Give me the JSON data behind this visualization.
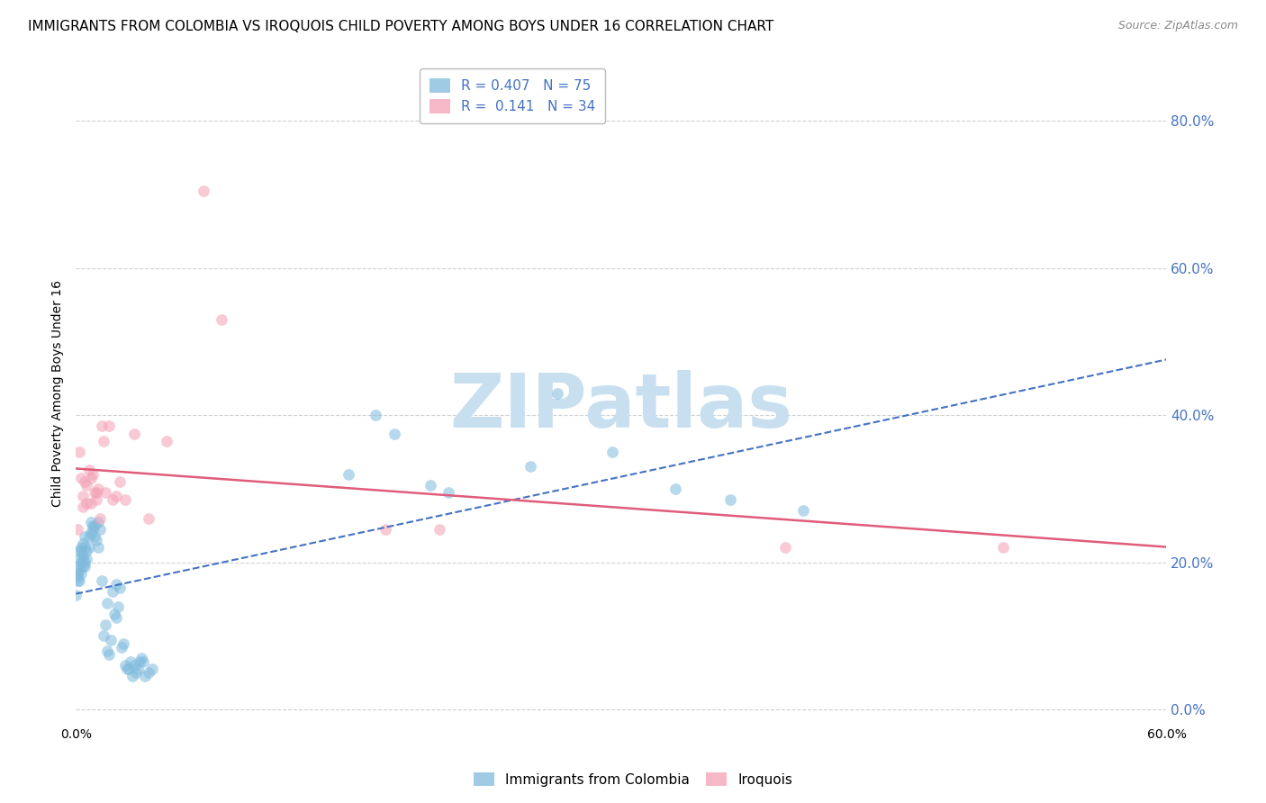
{
  "title": "IMMIGRANTS FROM COLOMBIA VS IROQUOIS CHILD POVERTY AMONG BOYS UNDER 16 CORRELATION CHART",
  "source": "Source: ZipAtlas.com",
  "ylabel": "Child Poverty Among Boys Under 16",
  "ytick_labels": [
    "0.0%",
    "20.0%",
    "40.0%",
    "60.0%",
    "80.0%"
  ],
  "ytick_values": [
    0.0,
    0.2,
    0.4,
    0.6,
    0.8
  ],
  "xtick_labels": [
    "0.0%",
    "60.0%"
  ],
  "xtick_values": [
    0.0,
    0.6
  ],
  "xrange": [
    0.0,
    0.6
  ],
  "yrange": [
    -0.02,
    0.88
  ],
  "R_blue": 0.407,
  "N_blue": 75,
  "R_pink": 0.141,
  "N_pink": 34,
  "legend_label_blue": "Immigrants from Colombia",
  "legend_label_pink": "Iroquois",
  "blue_color": "#7fbadd",
  "pink_color": "#f4a0b5",
  "line_blue_color": "#4472c4",
  "line_pink_color": "#e05c7a",
  "blue_scatter": [
    [
      0.0,
      0.155
    ],
    [
      0.001,
      0.185
    ],
    [
      0.001,
      0.175
    ],
    [
      0.001,
      0.195
    ],
    [
      0.001,
      0.18
    ],
    [
      0.002,
      0.205
    ],
    [
      0.002,
      0.19
    ],
    [
      0.002,
      0.215
    ],
    [
      0.002,
      0.175
    ],
    [
      0.003,
      0.2
    ],
    [
      0.003,
      0.215
    ],
    [
      0.003,
      0.22
    ],
    [
      0.003,
      0.185
    ],
    [
      0.004,
      0.21
    ],
    [
      0.004,
      0.225
    ],
    [
      0.004,
      0.195
    ],
    [
      0.004,
      0.205
    ],
    [
      0.005,
      0.22
    ],
    [
      0.005,
      0.2
    ],
    [
      0.005,
      0.235
    ],
    [
      0.005,
      0.195
    ],
    [
      0.006,
      0.215
    ],
    [
      0.006,
      0.205
    ],
    [
      0.007,
      0.235
    ],
    [
      0.007,
      0.22
    ],
    [
      0.008,
      0.255
    ],
    [
      0.008,
      0.24
    ],
    [
      0.009,
      0.245
    ],
    [
      0.009,
      0.25
    ],
    [
      0.01,
      0.235
    ],
    [
      0.01,
      0.25
    ],
    [
      0.011,
      0.23
    ],
    [
      0.012,
      0.255
    ],
    [
      0.012,
      0.22
    ],
    [
      0.013,
      0.245
    ],
    [
      0.014,
      0.175
    ],
    [
      0.015,
      0.1
    ],
    [
      0.016,
      0.115
    ],
    [
      0.017,
      0.145
    ],
    [
      0.017,
      0.08
    ],
    [
      0.018,
      0.075
    ],
    [
      0.019,
      0.095
    ],
    [
      0.02,
      0.16
    ],
    [
      0.021,
      0.13
    ],
    [
      0.022,
      0.125
    ],
    [
      0.022,
      0.17
    ],
    [
      0.023,
      0.14
    ],
    [
      0.024,
      0.165
    ],
    [
      0.025,
      0.085
    ],
    [
      0.026,
      0.09
    ],
    [
      0.027,
      0.06
    ],
    [
      0.028,
      0.055
    ],
    [
      0.029,
      0.055
    ],
    [
      0.03,
      0.065
    ],
    [
      0.031,
      0.045
    ],
    [
      0.032,
      0.06
    ],
    [
      0.033,
      0.05
    ],
    [
      0.034,
      0.055
    ],
    [
      0.035,
      0.065
    ],
    [
      0.036,
      0.07
    ],
    [
      0.037,
      0.065
    ],
    [
      0.038,
      0.045
    ],
    [
      0.04,
      0.05
    ],
    [
      0.042,
      0.055
    ],
    [
      0.15,
      0.32
    ],
    [
      0.165,
      0.4
    ],
    [
      0.175,
      0.375
    ],
    [
      0.195,
      0.305
    ],
    [
      0.205,
      0.295
    ],
    [
      0.25,
      0.33
    ],
    [
      0.265,
      0.43
    ],
    [
      0.295,
      0.35
    ],
    [
      0.33,
      0.3
    ],
    [
      0.36,
      0.285
    ],
    [
      0.4,
      0.27
    ]
  ],
  "pink_scatter": [
    [
      0.001,
      0.245
    ],
    [
      0.002,
      0.35
    ],
    [
      0.003,
      0.315
    ],
    [
      0.004,
      0.275
    ],
    [
      0.004,
      0.29
    ],
    [
      0.005,
      0.31
    ],
    [
      0.006,
      0.28
    ],
    [
      0.006,
      0.305
    ],
    [
      0.007,
      0.325
    ],
    [
      0.008,
      0.315
    ],
    [
      0.008,
      0.28
    ],
    [
      0.009,
      0.32
    ],
    [
      0.01,
      0.295
    ],
    [
      0.011,
      0.285
    ],
    [
      0.011,
      0.295
    ],
    [
      0.012,
      0.3
    ],
    [
      0.013,
      0.26
    ],
    [
      0.014,
      0.385
    ],
    [
      0.015,
      0.365
    ],
    [
      0.016,
      0.295
    ],
    [
      0.018,
      0.385
    ],
    [
      0.02,
      0.285
    ],
    [
      0.022,
      0.29
    ],
    [
      0.024,
      0.31
    ],
    [
      0.027,
      0.285
    ],
    [
      0.032,
      0.375
    ],
    [
      0.04,
      0.26
    ],
    [
      0.05,
      0.365
    ],
    [
      0.07,
      0.705
    ],
    [
      0.08,
      0.53
    ],
    [
      0.17,
      0.245
    ],
    [
      0.2,
      0.245
    ],
    [
      0.39,
      0.22
    ],
    [
      0.51,
      0.22
    ]
  ],
  "watermark_text": "ZIPatlas",
  "watermark_color": "#c8dff0",
  "title_fontsize": 11,
  "axis_label_fontsize": 10,
  "tick_label_fontsize": 10,
  "legend_fontsize": 11,
  "source_fontsize": 9,
  "scatter_alpha": 0.55,
  "scatter_size": 85,
  "grid_color": "#d0d0d0",
  "grid_style": "--",
  "background_color": "#ffffff"
}
